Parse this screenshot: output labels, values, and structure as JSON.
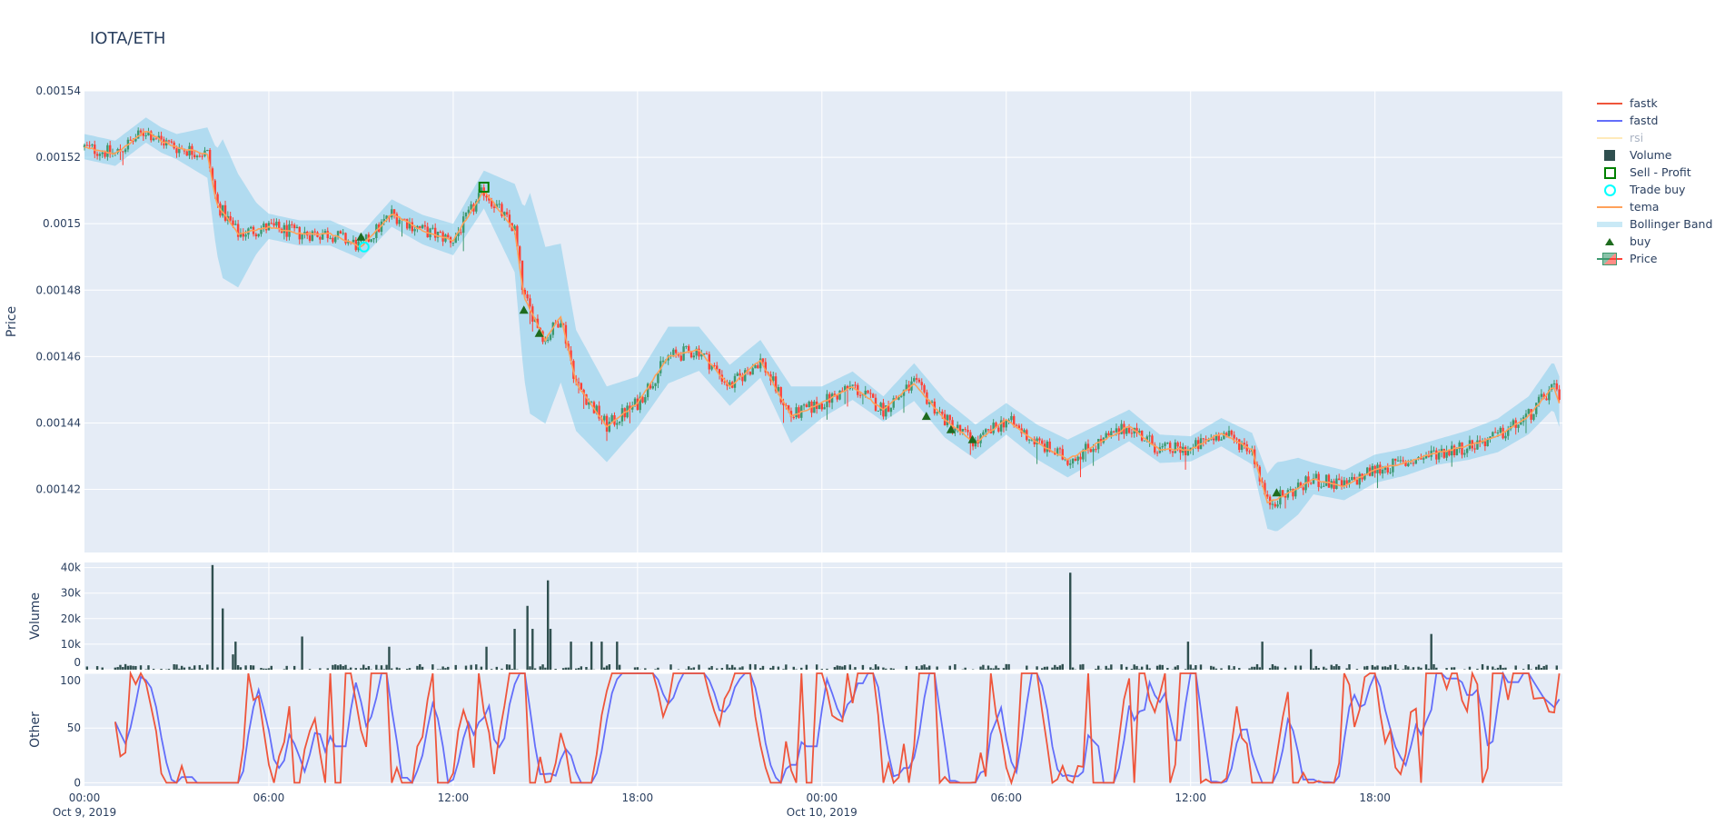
{
  "title": "IOTA/ETH",
  "chart_data": [
    {
      "type": "candlestick",
      "panel": "price",
      "ylabel": "Price",
      "ylim": [
        0.001401,
        0.00154
      ],
      "yticks": [
        "0.00142",
        "0.00144",
        "0.00146",
        "0.00148",
        "0.0015",
        "0.00152",
        "0.00154"
      ],
      "grid": true,
      "colors": {
        "increasing": "#3D9970",
        "decreasing": "#FF4136",
        "tema": "#FFA15A",
        "bollinger": "#87CEEB",
        "buy": "#1E6B1E",
        "sell_profit": "#008000",
        "trade_buy": "#00FFFF"
      },
      "tema": {
        "hours": [
          0,
          1,
          2,
          2.5,
          3,
          4,
          4.3,
          5,
          6,
          7,
          8,
          9,
          10,
          11,
          12,
          13,
          14,
          14.3,
          15,
          15.5,
          16,
          17,
          18,
          19,
          20,
          21,
          22,
          23,
          24,
          25,
          26,
          27,
          28,
          29,
          30,
          31,
          32,
          33,
          34,
          35,
          36,
          37,
          38,
          38.5,
          39,
          40,
          41,
          42,
          43,
          44,
          45,
          46,
          47,
          47.8,
          48
        ],
        "values": [
          0.001523,
          0.001521,
          0.001528,
          0.001525,
          0.001523,
          0.001521,
          0.001506,
          0.001497,
          0.001499,
          0.001497,
          0.001497,
          0.001493,
          0.001503,
          0.001498,
          0.001495,
          0.00151,
          0.001498,
          0.001478,
          0.001465,
          0.001472,
          0.001452,
          0.001439,
          0.001446,
          0.00146,
          0.001462,
          0.001451,
          0.001459,
          0.001442,
          0.001446,
          0.001451,
          0.001444,
          0.001452,
          0.001441,
          0.001434,
          0.001441,
          0.001434,
          0.001429,
          0.001434,
          0.001439,
          0.001432,
          0.001432,
          0.001437,
          0.001432,
          0.001416,
          0.001418,
          0.001423,
          0.001421,
          0.001426,
          0.001428,
          0.001431,
          0.001433,
          0.001436,
          0.001442,
          0.001451,
          0.001446
        ]
      },
      "bollinger_half_width": {
        "hours": [
          0,
          3,
          4,
          4.5,
          5,
          5.6,
          6,
          9,
          12,
          13,
          14,
          14.5,
          15,
          16,
          17,
          18,
          19,
          20,
          22,
          23,
          24,
          26,
          27,
          28,
          30,
          32,
          34,
          36,
          38,
          38.8,
          39.5,
          40,
          44,
          47,
          48
        ],
        "values": [
          4e-06,
          4e-06,
          8e-06,
          2.2e-05,
          1.8e-05,
          8e-06,
          4e-06,
          4e-06,
          5e-06,
          6e-06,
          1.4e-05,
          3.5e-05,
          2.8e-05,
          1.6e-05,
          1.2e-05,
          8e-06,
          9e-06,
          7e-06,
          6e-06,
          9e-06,
          5e-06,
          4e-06,
          6e-06,
          6e-06,
          5e-06,
          6e-06,
          5e-06,
          4e-06,
          5e-06,
          1.1e-05,
          9e-06,
          5e-06,
          4e-06,
          6e-06,
          8e-06
        ]
      },
      "buy_signals": [
        [
          9.0,
          0.001496
        ],
        [
          14.3,
          0.001474
        ],
        [
          14.8,
          0.001467
        ],
        [
          27.4,
          0.001442
        ],
        [
          28.2,
          0.001438
        ],
        [
          28.9,
          0.001435
        ],
        [
          38.8,
          0.001419
        ]
      ],
      "sell_profit": [
        [
          13.0,
          0.001511
        ]
      ],
      "trade_buy": [
        [
          9.1,
          0.001493
        ]
      ]
    },
    {
      "type": "bar",
      "panel": "volume",
      "ylabel": "Volume",
      "ylim": [
        0,
        42000
      ],
      "yticks": [
        "0",
        "10k",
        "20k",
        "30k",
        "40k"
      ],
      "color": "#2F4F4F",
      "spikes": [
        [
          4.2,
          41000
        ],
        [
          4.5,
          24000
        ],
        [
          4.9,
          11000
        ],
        [
          4.8,
          6000
        ],
        [
          7.1,
          13000
        ],
        [
          9.9,
          9000
        ],
        [
          13.1,
          9000
        ],
        [
          14.0,
          16000
        ],
        [
          14.4,
          25000
        ],
        [
          14.6,
          16000
        ],
        [
          15.1,
          35000
        ],
        [
          15.2,
          16000
        ],
        [
          15.8,
          11000
        ],
        [
          16.5,
          11000
        ],
        [
          16.8,
          11000
        ],
        [
          17.3,
          11000
        ],
        [
          32.1,
          38000
        ],
        [
          35.9,
          11000
        ],
        [
          38.3,
          11000
        ],
        [
          39.9,
          8000
        ],
        [
          43.8,
          14000
        ]
      ]
    },
    {
      "type": "line",
      "panel": "other",
      "ylabel": "Other",
      "ylim": [
        -3,
        100
      ],
      "yticks": [
        "0",
        "50",
        "100"
      ],
      "series": [
        {
          "name": "fastk",
          "color": "#EF553B",
          "range": [
            0,
            100
          ]
        },
        {
          "name": "fastd",
          "color": "#636EFA",
          "range": [
            0,
            100
          ]
        }
      ]
    }
  ],
  "xaxis": {
    "range_hours": [
      0,
      48.1
    ],
    "ticks": [
      {
        "label": "00:00",
        "sub": "Oct 9, 2019"
      },
      {
        "label": "06:00"
      },
      {
        "label": "12:00"
      },
      {
        "label": "18:00"
      },
      {
        "label": "00:00",
        "sub": "Oct 10, 2019"
      },
      {
        "label": "06:00"
      },
      {
        "label": "12:00"
      },
      {
        "label": "18:00"
      }
    ]
  },
  "legend": {
    "placement": "right",
    "items": [
      {
        "label": "fastk",
        "symbol": "line",
        "color": "#EF553B"
      },
      {
        "label": "fastd",
        "symbol": "line",
        "color": "#636EFA"
      },
      {
        "label": "rsi",
        "symbol": "line",
        "color": "#FECB52",
        "hidden": true
      },
      {
        "label": "Volume",
        "symbol": "square",
        "color": "#2F4F4F"
      },
      {
        "label": "Sell - Profit",
        "symbol": "square-open",
        "color": "#008000"
      },
      {
        "label": "Trade buy",
        "symbol": "circle-open",
        "color": "#00FFFF"
      },
      {
        "label": "tema",
        "symbol": "line",
        "color": "#FFA15A"
      },
      {
        "label": "Bollinger Band",
        "symbol": "band",
        "color": "#87CEEB"
      },
      {
        "label": "buy",
        "symbol": "triangle",
        "color": "#1E6B1E"
      },
      {
        "label": "Price",
        "symbol": "candle",
        "color": "#3D9970"
      }
    ]
  }
}
